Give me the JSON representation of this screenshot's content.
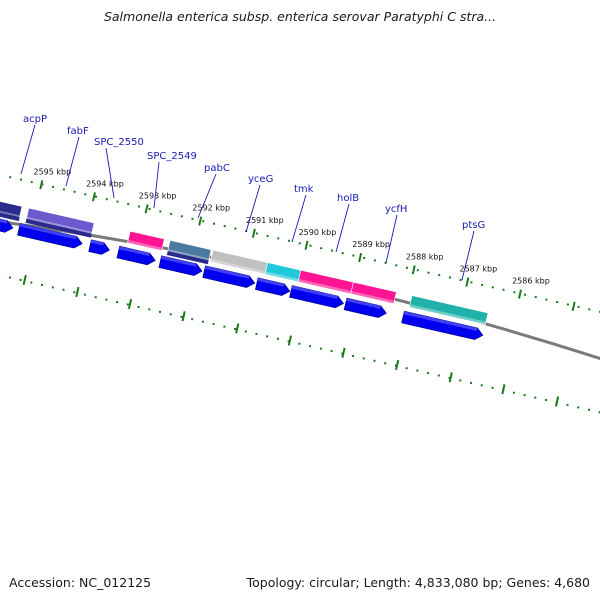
{
  "title": "Salmonella enterica subsp. enterica serovar Paratyphi C stra...",
  "footer": {
    "accession": "Accession: NC_012125",
    "summary": "Topology: circular; Length: 4,833,080 bp; Genes: 4,680"
  },
  "scale_labels": [
    "2595 kbp",
    "2594 kbp",
    "2593 kbp",
    "2592 kbp",
    "2591 kbp",
    "2590 kbp",
    "2589 kbp",
    "2588 kbp",
    "2587 kbp",
    "2586 kbp"
  ],
  "gene_labels": [
    "acpP",
    "fabF",
    "SPC_2550",
    "SPC_2549",
    "pabC",
    "yceG",
    "tmk",
    "holB",
    "ycfH",
    "ptsG"
  ],
  "colors": {
    "backbone": "#7a7a7a",
    "cds": "#0000ee",
    "tick": "#1a7a1a",
    "label": "#1a1ab0",
    "magenta": "#ff1493",
    "cyan": "#20c8dc",
    "teal": "#20b2aa",
    "gray": "#c0c0c0",
    "navy": "#2a2a8a",
    "steel": "#4a7aa0",
    "purple": "#6a5acd"
  }
}
